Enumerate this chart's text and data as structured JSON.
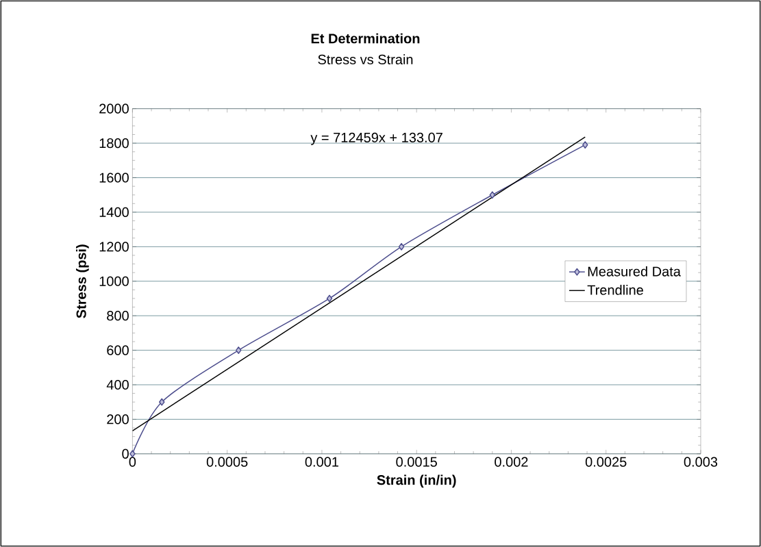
{
  "chart_data": {
    "type": "line",
    "title": "Et Determination",
    "subtitle": "Stress vs Strain",
    "xlabel": "Strain (in/in)",
    "ylabel": "Stress (psi)",
    "x": [
      0,
      0.000155,
      0.00056,
      0.00104,
      0.00142,
      0.0019,
      0.00239
    ],
    "series": [
      {
        "name": "Measured Data",
        "color": "#4b4c8c",
        "values": [
          0,
          300,
          600,
          900,
          1200,
          1500,
          1790
        ],
        "marker": "diamond"
      },
      {
        "name": "Trendline",
        "color": "#000000",
        "type": "line",
        "x": [
          0,
          0.00239
        ],
        "values": [
          133.07,
          1835.8
        ],
        "marker": "none"
      }
    ],
    "annotations": [
      "y = 712459x + 133.07"
    ],
    "xlim": [
      0,
      0.003
    ],
    "xticks": [
      0,
      0.0005,
      0.001,
      0.0015,
      0.002,
      0.0025,
      0.003
    ],
    "ylim": [
      0,
      2000
    ],
    "yticks": [
      0,
      200,
      400,
      600,
      800,
      1000,
      1200,
      1400,
      1600,
      1800,
      2000
    ],
    "grid": "y",
    "legend": "right"
  }
}
